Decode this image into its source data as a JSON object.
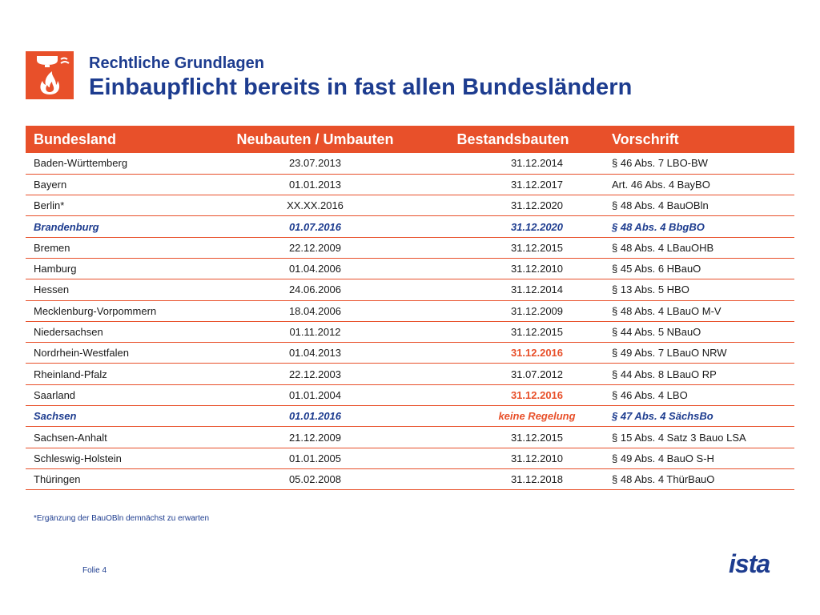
{
  "header": {
    "subtitle": "Rechtliche Grundlagen",
    "title": "Einbaupflicht bereits in fast allen Bundesländern",
    "icon": "smoke-detector-fire-icon",
    "accent_color": "#e8502a",
    "text_color": "#1d3c8f"
  },
  "table": {
    "columns": [
      "Bundesland",
      "Neubauten / Umbauten",
      "Bestandsbauten",
      "Vorschrift"
    ],
    "rows": [
      {
        "land": "Baden-Württemberg",
        "neu": "23.07.2013",
        "bestand": "31.12.2014",
        "vorschrift": "§ 46 Abs. 7 LBO-BW",
        "highlight": false,
        "bestand_red": false
      },
      {
        "land": "Bayern",
        "neu": "01.01.2013",
        "bestand": "31.12.2017",
        "vorschrift": "Art. 46 Abs. 4 BayBO",
        "highlight": false,
        "bestand_red": false
      },
      {
        "land": "Berlin*",
        "neu": "XX.XX.2016",
        "bestand": "31.12.2020",
        "vorschrift": "§ 48 Abs. 4 BauOBln",
        "highlight": false,
        "bestand_red": false
      },
      {
        "land": "Brandenburg",
        "neu": "01.07.2016",
        "bestand": "31.12.2020",
        "vorschrift": "§ 48 Abs. 4 BbgBO",
        "highlight": true,
        "bestand_red": false
      },
      {
        "land": "Bremen",
        "neu": "22.12.2009",
        "bestand": "31.12.2015",
        "vorschrift": "§ 48 Abs. 4 LBauOHB",
        "highlight": false,
        "bestand_red": false
      },
      {
        "land": "Hamburg",
        "neu": "01.04.2006",
        "bestand": "31.12.2010",
        "vorschrift": "§ 45 Abs. 6 HBauO",
        "highlight": false,
        "bestand_red": false
      },
      {
        "land": "Hessen",
        "neu": "24.06.2006",
        "bestand": "31.12.2014",
        "vorschrift": "§ 13 Abs. 5 HBO",
        "highlight": false,
        "bestand_red": false
      },
      {
        "land": "Mecklenburg-Vorpommern",
        "neu": "18.04.2006",
        "bestand": "31.12.2009",
        "vorschrift": "§ 48 Abs. 4 LBauO M-V",
        "highlight": false,
        "bestand_red": false
      },
      {
        "land": "Niedersachsen",
        "neu": "01.11.2012",
        "bestand": "31.12.2015",
        "vorschrift": "§ 44 Abs. 5 NBauO",
        "highlight": false,
        "bestand_red": false
      },
      {
        "land": "Nordrhein-Westfalen",
        "neu": "01.04.2013",
        "bestand": "31.12.2016",
        "vorschrift": "§ 49 Abs. 7 LBauO NRW",
        "highlight": false,
        "bestand_red": true
      },
      {
        "land": "Rheinland-Pfalz",
        "neu": "22.12.2003",
        "bestand": "31.07.2012",
        "vorschrift": "§ 44 Abs. 8 LBauO RP",
        "highlight": false,
        "bestand_red": false
      },
      {
        "land": "Saarland",
        "neu": "01.01.2004",
        "bestand": "31.12.2016",
        "vorschrift": "§ 46 Abs. 4 LBO",
        "highlight": false,
        "bestand_red": true
      },
      {
        "land": "Sachsen",
        "neu": "01.01.2016",
        "bestand": "keine Regelung",
        "vorschrift": "§ 47 Abs. 4 SächsBo",
        "highlight": true,
        "bestand_red": true
      },
      {
        "land": "Sachsen-Anhalt",
        "neu": "21.12.2009",
        "bestand": "31.12.2015",
        "vorschrift": "§ 15 Abs. 4 Satz 3 Bauo LSA",
        "highlight": false,
        "bestand_red": false
      },
      {
        "land": "Schleswig-Holstein",
        "neu": "01.01.2005",
        "bestand": "31.12.2010",
        "vorschrift": "§ 49 Abs. 4 BauO S-H",
        "highlight": false,
        "bestand_red": false
      },
      {
        "land": "Thüringen",
        "neu": "05.02.2008",
        "bestand": "31.12.2018",
        "vorschrift": "§ 48 Abs. 4 ThürBauO",
        "highlight": false,
        "bestand_red": false
      }
    ]
  },
  "footnote": "*Ergänzung der BauOBln demnächst zu erwarten",
  "footer": {
    "slide_label": "Folie 4",
    "brand": "ista"
  }
}
